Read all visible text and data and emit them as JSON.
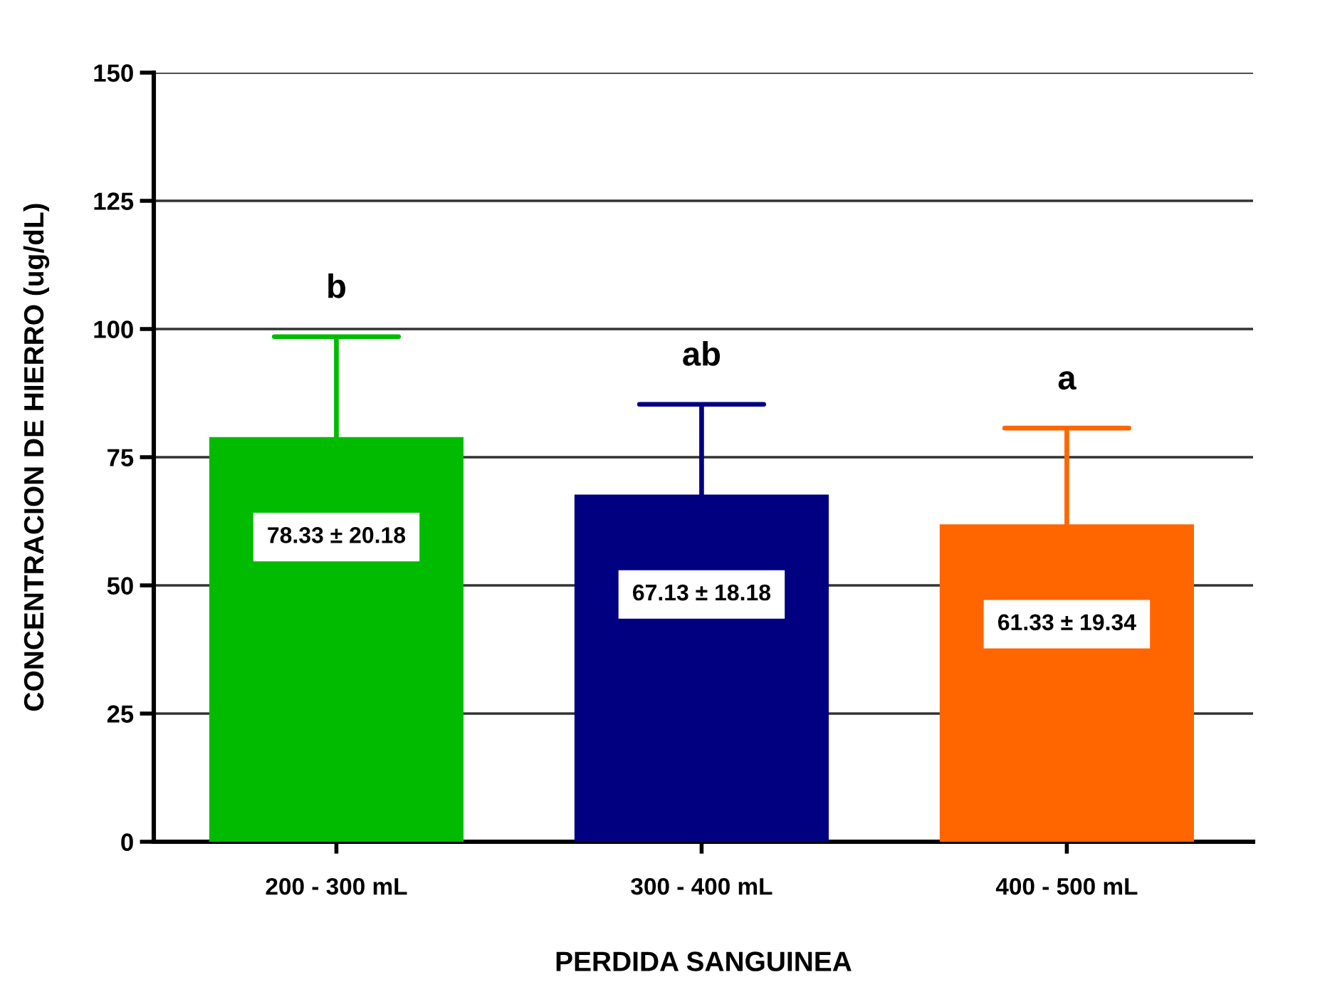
{
  "chart_data": {
    "type": "bar",
    "xlabel": "PERDIDA SANGUINEA",
    "ylabel": "CONCENTRACION DE HIERRO (ug/dL)",
    "categories": [
      "200 - 300 mL",
      "300 - 400 mL",
      "400 - 500 mL"
    ],
    "values": [
      78.33,
      67.13,
      61.33
    ],
    "colors": [
      "#00bb00",
      "#000080",
      "#ff6600"
    ],
    "errors": [
      [
        78.33,
        98.51
      ],
      [
        67.13,
        85.31
      ],
      [
        61.33,
        80.67
      ]
    ],
    "value_labels": [
      "78.33 ± 20.18",
      "67.13 ± 18.18",
      "61.33 ± 19.34"
    ],
    "annotations": [
      "b",
      "ab",
      "a"
    ],
    "ylim": [
      0,
      150
    ],
    "yticks": [
      0,
      25,
      50,
      75,
      100,
      125,
      150
    ],
    "grid": "y"
  }
}
